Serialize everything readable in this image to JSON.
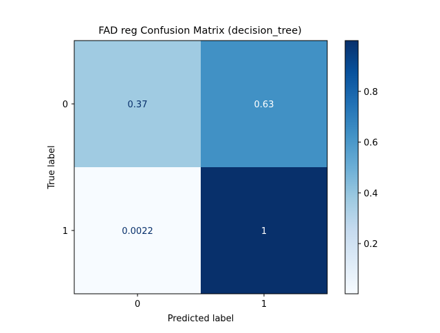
{
  "chart_data": {
    "type": "heatmap",
    "title": "FAD reg Confusion Matrix (decision_tree)",
    "xlabel": "Predicted label",
    "ylabel": "True label",
    "x_categories": [
      "0",
      "1"
    ],
    "y_categories": [
      "0",
      "1"
    ],
    "matrix": [
      [
        0.37,
        0.63
      ],
      [
        0.0022,
        1
      ]
    ],
    "cell_labels": [
      [
        "0.37",
        "0.63"
      ],
      [
        "0.0022",
        "1"
      ]
    ],
    "colormap": "Blues",
    "colorbar": {
      "range": [
        0.0022,
        1
      ],
      "ticks": [
        0.2,
        0.4,
        0.6,
        0.8
      ],
      "tick_labels": [
        "0.2",
        "0.4",
        "0.6",
        "0.8"
      ]
    },
    "text_color_dark": "#08306b",
    "text_color_light": "#ffffff"
  }
}
